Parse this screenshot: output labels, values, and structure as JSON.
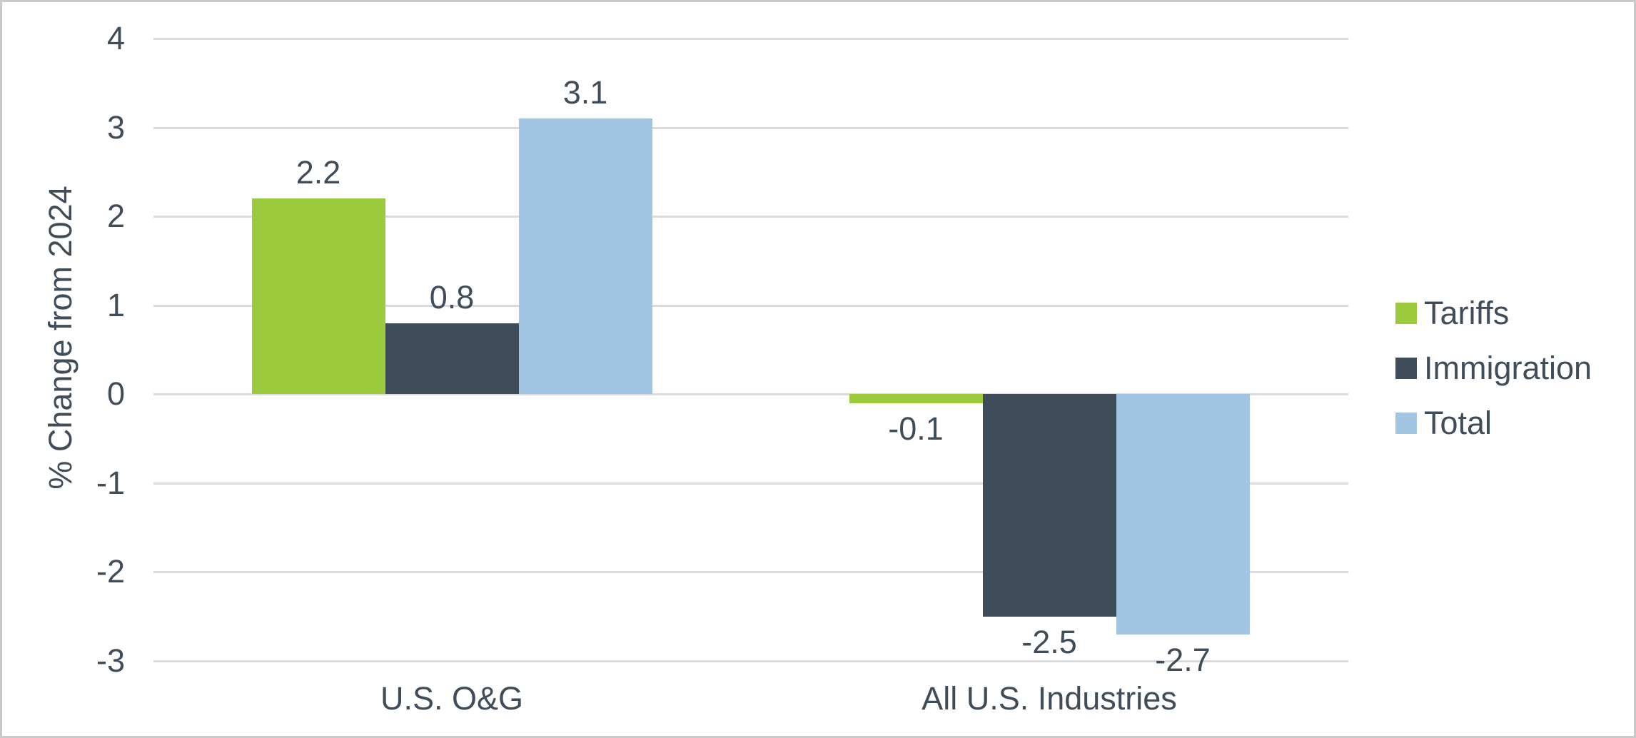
{
  "chart_data": {
    "type": "bar",
    "categories": [
      "U.S. O&G",
      "All U.S. Industries"
    ],
    "series": [
      {
        "name": "Tariffs",
        "color": "#9BCA3C",
        "values": [
          2.2,
          -0.1
        ],
        "labels": [
          "2.2",
          "-0.1"
        ]
      },
      {
        "name": "Immigration",
        "color": "#3F4C59",
        "values": [
          0.8,
          -2.5
        ],
        "labels": [
          "0.8",
          "-2.5"
        ]
      },
      {
        "name": "Total",
        "color": "#A2C5E4",
        "values": [
          3.1,
          -2.7
        ],
        "labels": [
          "3.1",
          "-2.7"
        ]
      }
    ],
    "title": "",
    "xlabel": "",
    "ylabel": "% Change from 2024",
    "ylim": [
      -3,
      4
    ],
    "yticks": [
      {
        "value": 4,
        "label": "4"
      },
      {
        "value": 3,
        "label": "3"
      },
      {
        "value": 2,
        "label": "2"
      },
      {
        "value": 1,
        "label": "1"
      },
      {
        "value": 0,
        "label": "0"
      },
      {
        "value": -1,
        "label": "-1"
      },
      {
        "value": -2,
        "label": "-2"
      },
      {
        "value": -3,
        "label": "-3"
      }
    ],
    "grid": true,
    "legend_position": "right"
  },
  "colors": {
    "text": "#3F4C59",
    "gridline": "#DBDBDB",
    "border": "#C9C9C9",
    "background": "#FFFFFF"
  }
}
